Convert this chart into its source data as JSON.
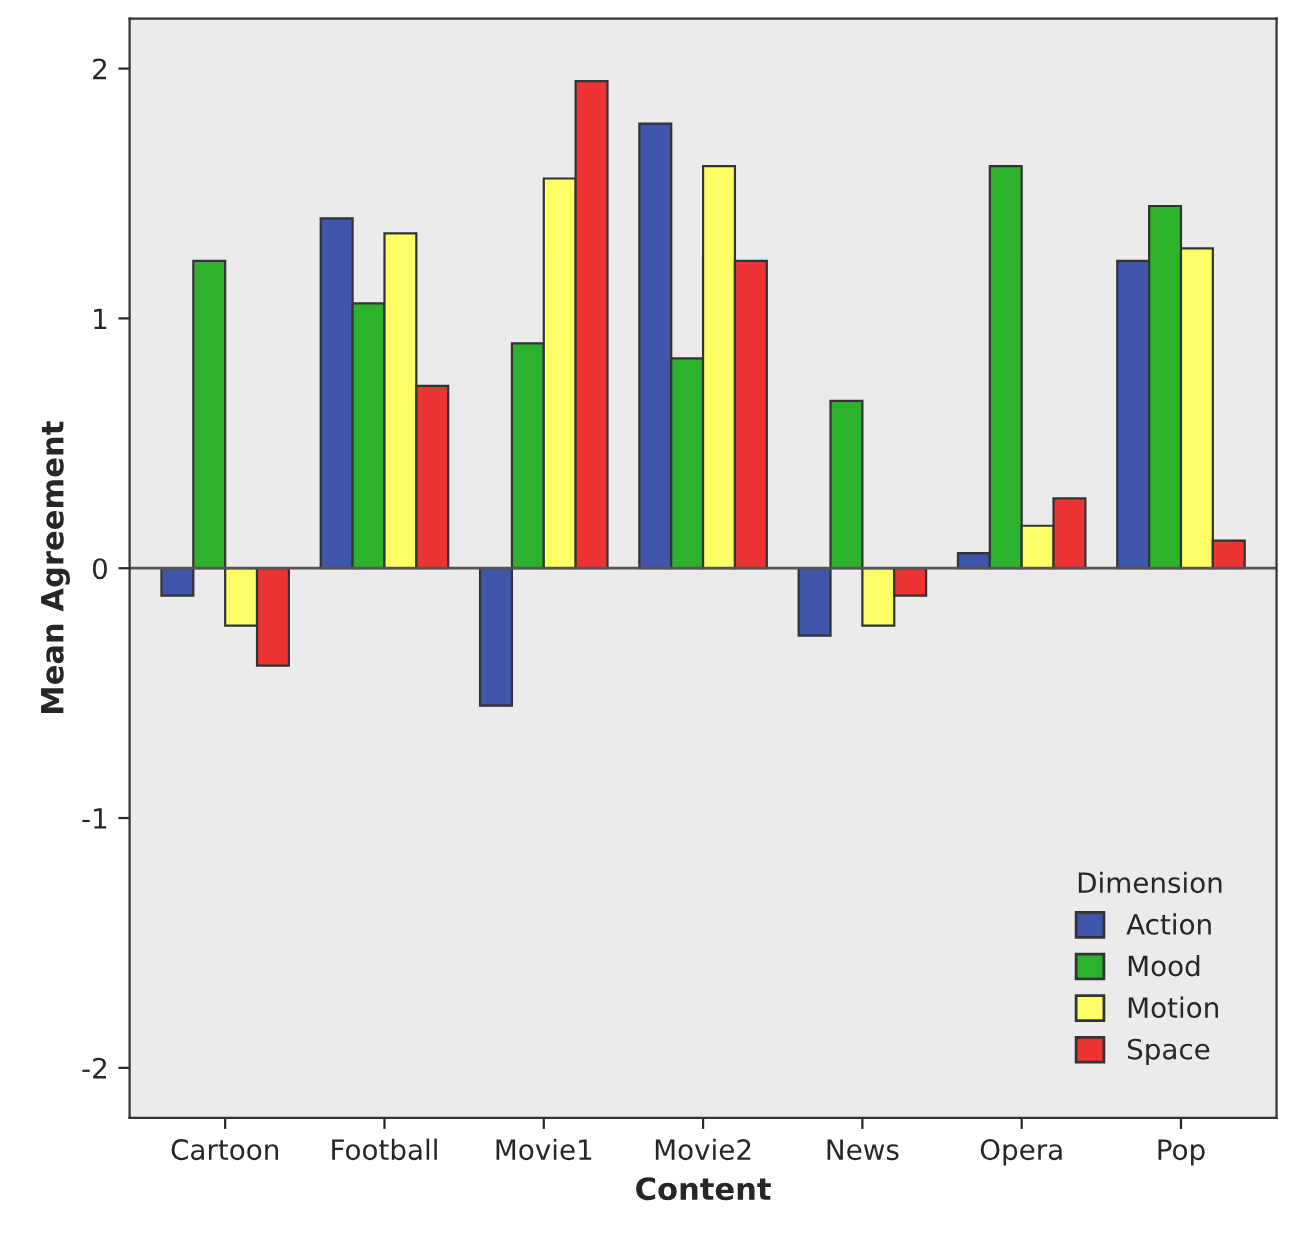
{
  "chart_data": {
    "type": "bar",
    "xlabel": "Content",
    "ylabel": "Mean Agreement",
    "legend_title": "Dimension",
    "categories": [
      "Cartoon",
      "Football",
      "Movie1",
      "Movie2",
      "News",
      "Opera",
      "Pop"
    ],
    "series": [
      {
        "name": "Action",
        "color": "#3e55ab",
        "values": [
          -0.11,
          1.4,
          -0.55,
          1.78,
          -0.27,
          0.06,
          1.23
        ]
      },
      {
        "name": "Mood",
        "color": "#2db22d",
        "values": [
          1.23,
          1.06,
          0.9,
          0.84,
          0.67,
          1.61,
          1.45
        ]
      },
      {
        "name": "Motion",
        "color": "#ffff66",
        "values": [
          -0.23,
          1.34,
          1.56,
          1.61,
          -0.23,
          0.17,
          1.28
        ]
      },
      {
        "name": "Space",
        "color": "#ee3333",
        "values": [
          -0.39,
          0.73,
          1.95,
          1.23,
          -0.11,
          0.28,
          0.11
        ]
      }
    ],
    "ylim": [
      -2.2,
      2.2
    ],
    "yticks": [
      -2,
      -1,
      0,
      1,
      2
    ],
    "ref_lines": [
      {
        "axis": "y",
        "value": 0,
        "color": "#555555"
      }
    ],
    "grid": false,
    "legend": "bottom right"
  }
}
